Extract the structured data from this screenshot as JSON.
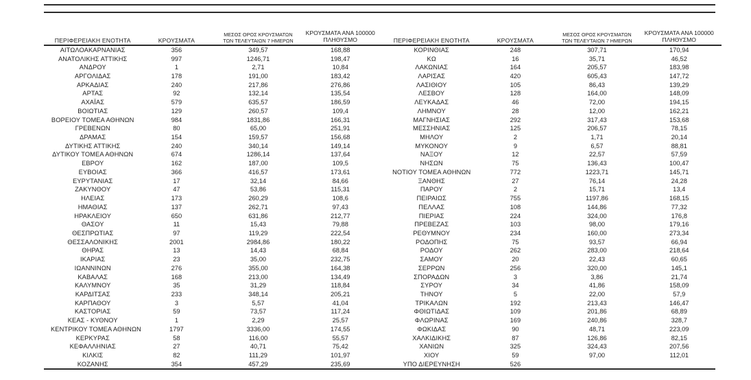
{
  "page": {
    "background": "#ffffff",
    "text_color": "#212121",
    "rule_color": "#2b2b2b"
  },
  "table": {
    "column_headers": {
      "region": "ΠΕΡΙΦΕΡΕΙΑΚΗ ΕΝΟΤΗΤΑ",
      "cases": "ΚΡΟΥΣΜΑΤΑ",
      "avg7_line1": "ΜΕΣΟΣ ΟΡΟΣ ΚΡΟΥΣΜΑΤΩΝ",
      "avg7_line2": "ΤΩΝ ΤΕΛΕΥΤΑΙΩΝ 7 ΗΜΕΡΩΝ",
      "per100k_line1": "ΚΡΟΥΣΜΑΤΑ ΑΝΑ 100000",
      "per100k_line2": "ΠΛΗΘΥΣΜΟ"
    },
    "left_rows": [
      {
        "region": "ΑΙΤΩΛΟΑΚΑΡΝΑΝΙΑΣ",
        "cases": "356",
        "avg7": "349,57",
        "per100k": "168,88"
      },
      {
        "region": "ΑΝΑΤΟΛΙΚΗΣ ΑΤΤΙΚΗΣ",
        "cases": "997",
        "avg7": "1246,71",
        "per100k": "198,47"
      },
      {
        "region": "ΑΝΔΡΟΥ",
        "cases": "1",
        "avg7": "2,71",
        "per100k": "10,84"
      },
      {
        "region": "ΑΡΓΟΛΙΔΑΣ",
        "cases": "178",
        "avg7": "191,00",
        "per100k": "183,42"
      },
      {
        "region": "ΑΡΚΑΔΙΑΣ",
        "cases": "240",
        "avg7": "217,86",
        "per100k": "276,86"
      },
      {
        "region": "ΑΡΤΑΣ",
        "cases": "92",
        "avg7": "132,14",
        "per100k": "135,54"
      },
      {
        "region": "ΑΧΑΪΑΣ",
        "cases": "579",
        "avg7": "635,57",
        "per100k": "186,59"
      },
      {
        "region": "ΒΟΙΩΤΙΑΣ",
        "cases": "129",
        "avg7": "260,57",
        "per100k": "109,4"
      },
      {
        "region": "ΒΟΡΕΙΟΥ ΤΟΜΕΑ ΑΘΗΝΩΝ",
        "cases": "984",
        "avg7": "1831,86",
        "per100k": "166,31"
      },
      {
        "region": "ΓΡΕΒΕΝΩΝ",
        "cases": "80",
        "avg7": "65,00",
        "per100k": "251,91"
      },
      {
        "region": "ΔΡΑΜΑΣ",
        "cases": "154",
        "avg7": "159,57",
        "per100k": "156,68"
      },
      {
        "region": "ΔΥΤΙΚΗΣ ΑΤΤΙΚΗΣ",
        "cases": "240",
        "avg7": "340,14",
        "per100k": "149,14"
      },
      {
        "region": "ΔΥΤΙΚΟΥ ΤΟΜΕΑ ΑΘΗΝΩΝ",
        "cases": "674",
        "avg7": "1286,14",
        "per100k": "137,64"
      },
      {
        "region": "ΕΒΡΟΥ",
        "cases": "162",
        "avg7": "187,00",
        "per100k": "109,5"
      },
      {
        "region": "ΕΥΒΟΙΑΣ",
        "cases": "366",
        "avg7": "416,57",
        "per100k": "173,61"
      },
      {
        "region": "ΕΥΡΥΤΑΝΙΑΣ",
        "cases": "17",
        "avg7": "32,14",
        "per100k": "84,66"
      },
      {
        "region": "ΖΑΚΥΝΘΟΥ",
        "cases": "47",
        "avg7": "53,86",
        "per100k": "115,31"
      },
      {
        "region": "ΗΛΕΙΑΣ",
        "cases": "173",
        "avg7": "260,29",
        "per100k": "108,6"
      },
      {
        "region": "ΗΜΑΘΙΑΣ",
        "cases": "137",
        "avg7": "262,71",
        "per100k": "97,43"
      },
      {
        "region": "ΗΡΑΚΛΕΙΟΥ",
        "cases": "650",
        "avg7": "631,86",
        "per100k": "212,77"
      },
      {
        "region": "ΘΑΣΟΥ",
        "cases": "11",
        "avg7": "15,43",
        "per100k": "79,88"
      },
      {
        "region": "ΘΕΣΠΡΩΤΙΑΣ",
        "cases": "97",
        "avg7": "119,29",
        "per100k": "222,54"
      },
      {
        "region": "ΘΕΣΣΑΛΟΝΙΚΗΣ",
        "cases": "2001",
        "avg7": "2984,86",
        "per100k": "180,22"
      },
      {
        "region": "ΘΗΡΑΣ",
        "cases": "13",
        "avg7": "14,43",
        "per100k": "68,84"
      },
      {
        "region": "ΙΚΑΡΙΑΣ",
        "cases": "23",
        "avg7": "35,00",
        "per100k": "232,75"
      },
      {
        "region": "ΙΩΑΝΝΙΝΩΝ",
        "cases": "276",
        "avg7": "355,00",
        "per100k": "164,38"
      },
      {
        "region": "ΚΑΒΑΛΑΣ",
        "cases": "168",
        "avg7": "213,00",
        "per100k": "134,49"
      },
      {
        "region": "ΚΑΛΥΜΝΟΥ",
        "cases": "35",
        "avg7": "31,29",
        "per100k": "118,84"
      },
      {
        "region": "ΚΑΡΔΙΤΣΑΣ",
        "cases": "233",
        "avg7": "348,14",
        "per100k": "205,21"
      },
      {
        "region": "ΚΑΡΠΑΘΟΥ",
        "cases": "3",
        "avg7": "5,57",
        "per100k": "41,04"
      },
      {
        "region": "ΚΑΣΤΟΡΙΑΣ",
        "cases": "59",
        "avg7": "73,57",
        "per100k": "117,24"
      },
      {
        "region": "ΚΕΑΣ - ΚΥΘΝΟΥ",
        "cases": "1",
        "avg7": "2,29",
        "per100k": "25,57"
      },
      {
        "region": "ΚΕΝΤΡΙΚΟΥ ΤΟΜΕΑ ΑΘΗΝΩΝ",
        "cases": "1797",
        "avg7": "3336,00",
        "per100k": "174,55"
      },
      {
        "region": "ΚΕΡΚΥΡΑΣ",
        "cases": "58",
        "avg7": "116,00",
        "per100k": "55,57"
      },
      {
        "region": "ΚΕΦΑΛΛΗΝΙΑΣ",
        "cases": "27",
        "avg7": "40,71",
        "per100k": "75,42"
      },
      {
        "region": "ΚΙΛΚΙΣ",
        "cases": "82",
        "avg7": "111,29",
        "per100k": "101,97"
      },
      {
        "region": "ΚΟΖΑΝΗΣ",
        "cases": "354",
        "avg7": "457,29",
        "per100k": "235,69"
      }
    ],
    "right_rows": [
      {
        "region": "ΚΟΡΙΝΘΙΑΣ",
        "cases": "248",
        "avg7": "307,71",
        "per100k": "170,94"
      },
      {
        "region": "ΚΩ",
        "cases": "16",
        "avg7": "35,71",
        "per100k": "46,52"
      },
      {
        "region": "ΛΑΚΩΝΙΑΣ",
        "cases": "164",
        "avg7": "205,57",
        "per100k": "183,98"
      },
      {
        "region": "ΛΑΡΙΣΑΣ",
        "cases": "420",
        "avg7": "605,43",
        "per100k": "147,72"
      },
      {
        "region": "ΛΑΣΙΘΙΟΥ",
        "cases": "105",
        "avg7": "86,43",
        "per100k": "139,29"
      },
      {
        "region": "ΛΕΣΒΟΥ",
        "cases": "128",
        "avg7": "164,00",
        "per100k": "148,09"
      },
      {
        "region": "ΛΕΥΚΑΔΑΣ",
        "cases": "46",
        "avg7": "72,00",
        "per100k": "194,15"
      },
      {
        "region": "ΛΗΜΝΟΥ",
        "cases": "28",
        "avg7": "12,00",
        "per100k": "162,21"
      },
      {
        "region": "ΜΑΓΝΗΣΙΑΣ",
        "cases": "292",
        "avg7": "317,43",
        "per100k": "153,68"
      },
      {
        "region": "ΜΕΣΣΗΝΙΑΣ",
        "cases": "125",
        "avg7": "206,57",
        "per100k": "78,15"
      },
      {
        "region": "ΜΗΛΟΥ",
        "cases": "2",
        "avg7": "1,71",
        "per100k": "20,14"
      },
      {
        "region": "ΜΥΚΟΝΟΥ",
        "cases": "9",
        "avg7": "6,57",
        "per100k": "88,81"
      },
      {
        "region": "ΝΑΞΟΥ",
        "cases": "12",
        "avg7": "22,57",
        "per100k": "57,59"
      },
      {
        "region": "ΝΗΣΩΝ",
        "cases": "75",
        "avg7": "136,43",
        "per100k": "100,47"
      },
      {
        "region": "ΝΟΤΙΟΥ ΤΟΜΕΑ ΑΘΗΝΩΝ",
        "cases": "772",
        "avg7": "1223,71",
        "per100k": "145,71"
      },
      {
        "region": "ΞΑΝΘΗΣ",
        "cases": "27",
        "avg7": "76,14",
        "per100k": "24,28"
      },
      {
        "region": "ΠΑΡΟΥ",
        "cases": "2",
        "avg7": "15,71",
        "per100k": "13,4"
      },
      {
        "region": "ΠΕΙΡΑΙΩΣ",
        "cases": "755",
        "avg7": "1197,86",
        "per100k": "168,15"
      },
      {
        "region": "ΠΕΛΛΑΣ",
        "cases": "108",
        "avg7": "144,86",
        "per100k": "77,32"
      },
      {
        "region": "ΠΙΕΡΙΑΣ",
        "cases": "224",
        "avg7": "324,00",
        "per100k": "176,8"
      },
      {
        "region": "ΠΡΕΒΕΖΑΣ",
        "cases": "103",
        "avg7": "98,00",
        "per100k": "179,16"
      },
      {
        "region": "ΡΕΘΥΜΝΟΥ",
        "cases": "234",
        "avg7": "160,00",
        "per100k": "273,34"
      },
      {
        "region": "ΡΟΔΟΠΗΣ",
        "cases": "75",
        "avg7": "93,57",
        "per100k": "66,94"
      },
      {
        "region": "ΡΟΔΟΥ",
        "cases": "262",
        "avg7": "283,00",
        "per100k": "218,64"
      },
      {
        "region": "ΣΑΜΟΥ",
        "cases": "20",
        "avg7": "22,43",
        "per100k": "60,65"
      },
      {
        "region": "ΣΕΡΡΩΝ",
        "cases": "256",
        "avg7": "320,00",
        "per100k": "145,1"
      },
      {
        "region": "ΣΠΟΡΑΔΩΝ",
        "cases": "3",
        "avg7": "3,86",
        "per100k": "21,74"
      },
      {
        "region": "ΣΥΡΟΥ",
        "cases": "34",
        "avg7": "41,86",
        "per100k": "158,09"
      },
      {
        "region": "ΤΗΝΟΥ",
        "cases": "5",
        "avg7": "22,00",
        "per100k": "57,9"
      },
      {
        "region": "ΤΡΙΚΑΛΩΝ",
        "cases": "192",
        "avg7": "213,43",
        "per100k": "146,47"
      },
      {
        "region": "ΦΘΙΩΤΙΔΑΣ",
        "cases": "109",
        "avg7": "201,86",
        "per100k": "68,89"
      },
      {
        "region": "ΦΛΩΡΙΝΑΣ",
        "cases": "169",
        "avg7": "240,86",
        "per100k": "328,7"
      },
      {
        "region": "ΦΩΚΙΔΑΣ",
        "cases": "90",
        "avg7": "48,71",
        "per100k": "223,09"
      },
      {
        "region": "ΧΑΛΚΙΔΙΚΗΣ",
        "cases": "87",
        "avg7": "126,86",
        "per100k": "82,15"
      },
      {
        "region": "ΧΑΝΙΩΝ",
        "cases": "325",
        "avg7": "324,43",
        "per100k": "207,56"
      },
      {
        "region": "ΧΙΟΥ",
        "cases": "59",
        "avg7": "97,00",
        "per100k": "112,01"
      },
      {
        "region": "ΥΠΟ ΔΙΕΡΕΥΝΗΣΗ",
        "cases": "526",
        "avg7": "",
        "per100k": ""
      }
    ]
  }
}
